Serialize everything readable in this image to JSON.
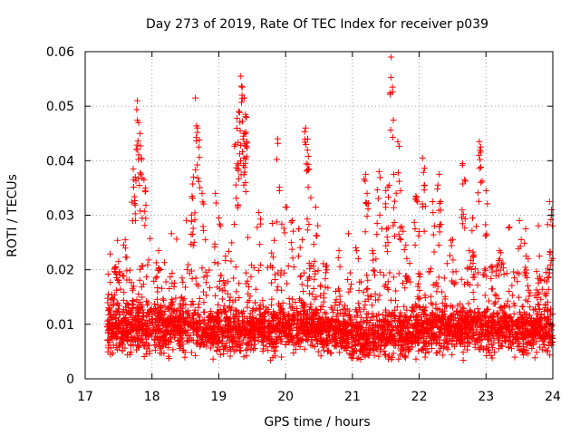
{
  "chart_data": {
    "type": "scatter",
    "title": "Day 273 of 2019, Rate Of TEC Index for receiver p039",
    "xlabel": "GPS time / hours",
    "ylabel": "ROTI / TECUs",
    "xlim": [
      17,
      24
    ],
    "ylim": [
      0,
      0.06
    ],
    "xticks": [
      "17",
      "18",
      "19",
      "20",
      "21",
      "22",
      "23",
      "24"
    ],
    "yticks": [
      "0",
      "0.01",
      "0.02",
      "0.03",
      "0.04",
      "0.05",
      "0.06"
    ],
    "grid": true,
    "marker": "+",
    "color": "#ff0000",
    "x_start": 17.33,
    "x_end": 24.0,
    "baseline": {
      "x": [
        17.33,
        17.8,
        18.5,
        19.0,
        19.5,
        20.0,
        20.5,
        21.0,
        21.5,
        22.0,
        22.5,
        23.0,
        23.5,
        24.0
      ],
      "y": [
        0.009,
        0.0095,
        0.0095,
        0.009,
        0.009,
        0.0095,
        0.0095,
        0.008,
        0.008,
        0.009,
        0.0095,
        0.0095,
        0.009,
        0.009
      ]
    },
    "x": [
      17.78,
      17.8,
      17.82,
      17.84,
      17.88,
      17.72,
      17.75,
      17.9,
      18.65,
      18.68,
      18.7,
      18.62,
      18.75,
      18.6,
      18.95,
      19.3,
      19.33,
      19.35,
      19.38,
      19.4,
      19.32,
      19.37,
      19.42,
      19.25,
      19.28,
      19.88,
      20.3,
      20.33,
      20.35,
      20.2,
      20.0,
      20.1,
      20.45,
      21.2,
      21.22,
      21.4,
      21.55,
      21.58,
      21.6,
      21.62,
      21.68,
      21.72,
      21.5,
      21.52,
      21.95,
      22.05,
      22.08,
      22.3,
      22.32,
      22.65,
      22.68,
      22.9,
      22.92,
      23.95,
      23.98,
      22.0,
      22.2,
      22.5,
      22.8,
      23.0,
      23.5,
      23.8,
      17.5,
      17.6,
      18.1,
      18.3,
      18.8,
      19.0,
      19.6,
      19.8,
      20.6,
      20.8,
      21.3,
      21.8,
      23.2,
      23.6,
      17.45,
      18.45,
      19.1,
      20.25,
      22.75,
      23.9
    ],
    "y": [
      0.051,
      0.047,
      0.045,
      0.0405,
      0.0365,
      0.0385,
      0.037,
      0.035,
      0.0515,
      0.046,
      0.0425,
      0.037,
      0.034,
      0.0335,
      0.034,
      0.049,
      0.0555,
      0.0535,
      0.0515,
      0.0485,
      0.0455,
      0.0445,
      0.0435,
      0.043,
      0.0395,
      0.044,
      0.046,
      0.044,
      0.0385,
      0.0275,
      0.0315,
      0.029,
      0.0315,
      0.0375,
      0.034,
      0.038,
      0.0355,
      0.059,
      0.0535,
      0.0375,
      0.0435,
      0.0345,
      0.0345,
      0.026,
      0.0335,
      0.0405,
      0.0355,
      0.0375,
      0.0325,
      0.0395,
      0.0365,
      0.0435,
      0.0425,
      0.0325,
      0.031,
      0.027,
      0.0325,
      0.0255,
      0.0295,
      0.0345,
      0.029,
      0.0225,
      0.0215,
      0.0255,
      0.0235,
      0.0175,
      0.0255,
      0.0295,
      0.0305,
      0.0285,
      0.0205,
      0.0235,
      0.0235,
      0.0245,
      0.0235,
      0.0225,
      0.0195,
      0.0185,
      0.0225,
      0.0255,
      0.0235,
      0.0195
    ]
  }
}
